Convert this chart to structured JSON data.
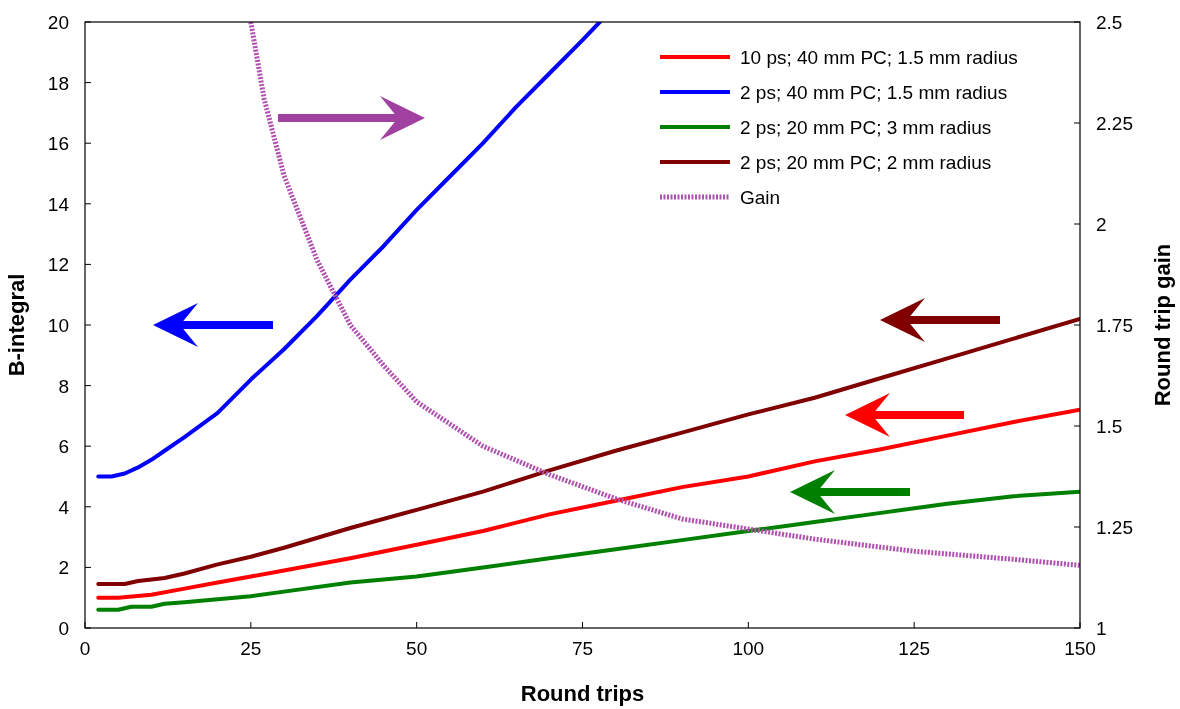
{
  "chart_data": {
    "type": "line",
    "xlabel": "Round trips",
    "ylabel": "B-integral",
    "y2label": "Round trip gain",
    "xlim": [
      0,
      150
    ],
    "xticks": [
      0,
      25,
      50,
      75,
      100,
      125,
      150
    ],
    "ylim": [
      0,
      20
    ],
    "yticks": [
      0,
      2,
      4,
      6,
      8,
      10,
      12,
      14,
      16,
      18,
      20
    ],
    "y2lim": [
      1,
      2.5
    ],
    "y2ticks": [
      1,
      1.25,
      1.5,
      1.75,
      2,
      2.25,
      2.5
    ],
    "legend": "top right",
    "grid": false,
    "marker": "none",
    "series": [
      {
        "name": "10 ps; 40 mm PC; 1.5 mm radius",
        "color": "#ff0000",
        "x": [
          2,
          5,
          10,
          15,
          20,
          25,
          30,
          40,
          50,
          60,
          70,
          80,
          90,
          100,
          110,
          120,
          130,
          140,
          150
        ],
        "values": [
          1.0,
          1.0,
          1.1,
          1.3,
          1.5,
          1.7,
          1.9,
          2.3,
          2.75,
          3.2,
          3.75,
          4.2,
          4.65,
          5.0,
          5.5,
          5.9,
          6.35,
          6.8,
          7.2
        ]
      },
      {
        "name": "2 ps; 40 mm PC; 1.5 mm radius",
        "color": "#0000ff",
        "x": [
          2,
          4,
          6,
          8,
          10,
          12,
          15,
          20,
          25,
          30,
          35,
          40,
          45,
          50,
          55,
          60,
          65,
          70,
          75,
          77.6
        ],
        "values": [
          5.0,
          5.0,
          5.1,
          5.3,
          5.55,
          5.85,
          6.3,
          7.1,
          8.2,
          9.2,
          10.3,
          11.5,
          12.6,
          13.8,
          14.9,
          16.0,
          17.2,
          18.3,
          19.4,
          20
        ]
      },
      {
        "name": "2 ps; 20 mm PC; 3 mm radius",
        "color": "#008000",
        "x": [
          2,
          5,
          7,
          10,
          12,
          15,
          20,
          25,
          30,
          40,
          50,
          60,
          70,
          80,
          90,
          100,
          110,
          120,
          130,
          140,
          150
        ],
        "values": [
          0.6,
          0.6,
          0.7,
          0.7,
          0.8,
          0.85,
          0.95,
          1.05,
          1.2,
          1.5,
          1.7,
          2.0,
          2.3,
          2.6,
          2.9,
          3.2,
          3.5,
          3.8,
          4.1,
          4.35,
          4.5
        ]
      },
      {
        "name": "2 ps; 20 mm PC; 2 mm radius",
        "color": "#800000",
        "x": [
          2,
          6,
          8,
          10,
          12,
          15,
          20,
          25,
          30,
          40,
          50,
          60,
          70,
          80,
          90,
          100,
          110,
          120,
          130,
          140,
          150
        ],
        "values": [
          1.45,
          1.45,
          1.55,
          1.6,
          1.65,
          1.8,
          2.1,
          2.35,
          2.65,
          3.3,
          3.9,
          4.5,
          5.2,
          5.85,
          6.45,
          7.05,
          7.6,
          8.25,
          8.9,
          9.55,
          10.2
        ]
      },
      {
        "name": "Gain",
        "color": "#b050b0",
        "axis": "y2",
        "line_style": "dotted",
        "x": [
          25,
          27,
          30,
          35,
          40,
          45,
          50,
          60,
          70,
          80,
          90,
          100,
          110,
          125,
          140,
          150
        ],
        "values": [
          2.5,
          2.31,
          2.12,
          1.91,
          1.75,
          1.65,
          1.56,
          1.45,
          1.38,
          1.32,
          1.27,
          1.245,
          1.22,
          1.19,
          1.17,
          1.155
        ]
      }
    ]
  }
}
